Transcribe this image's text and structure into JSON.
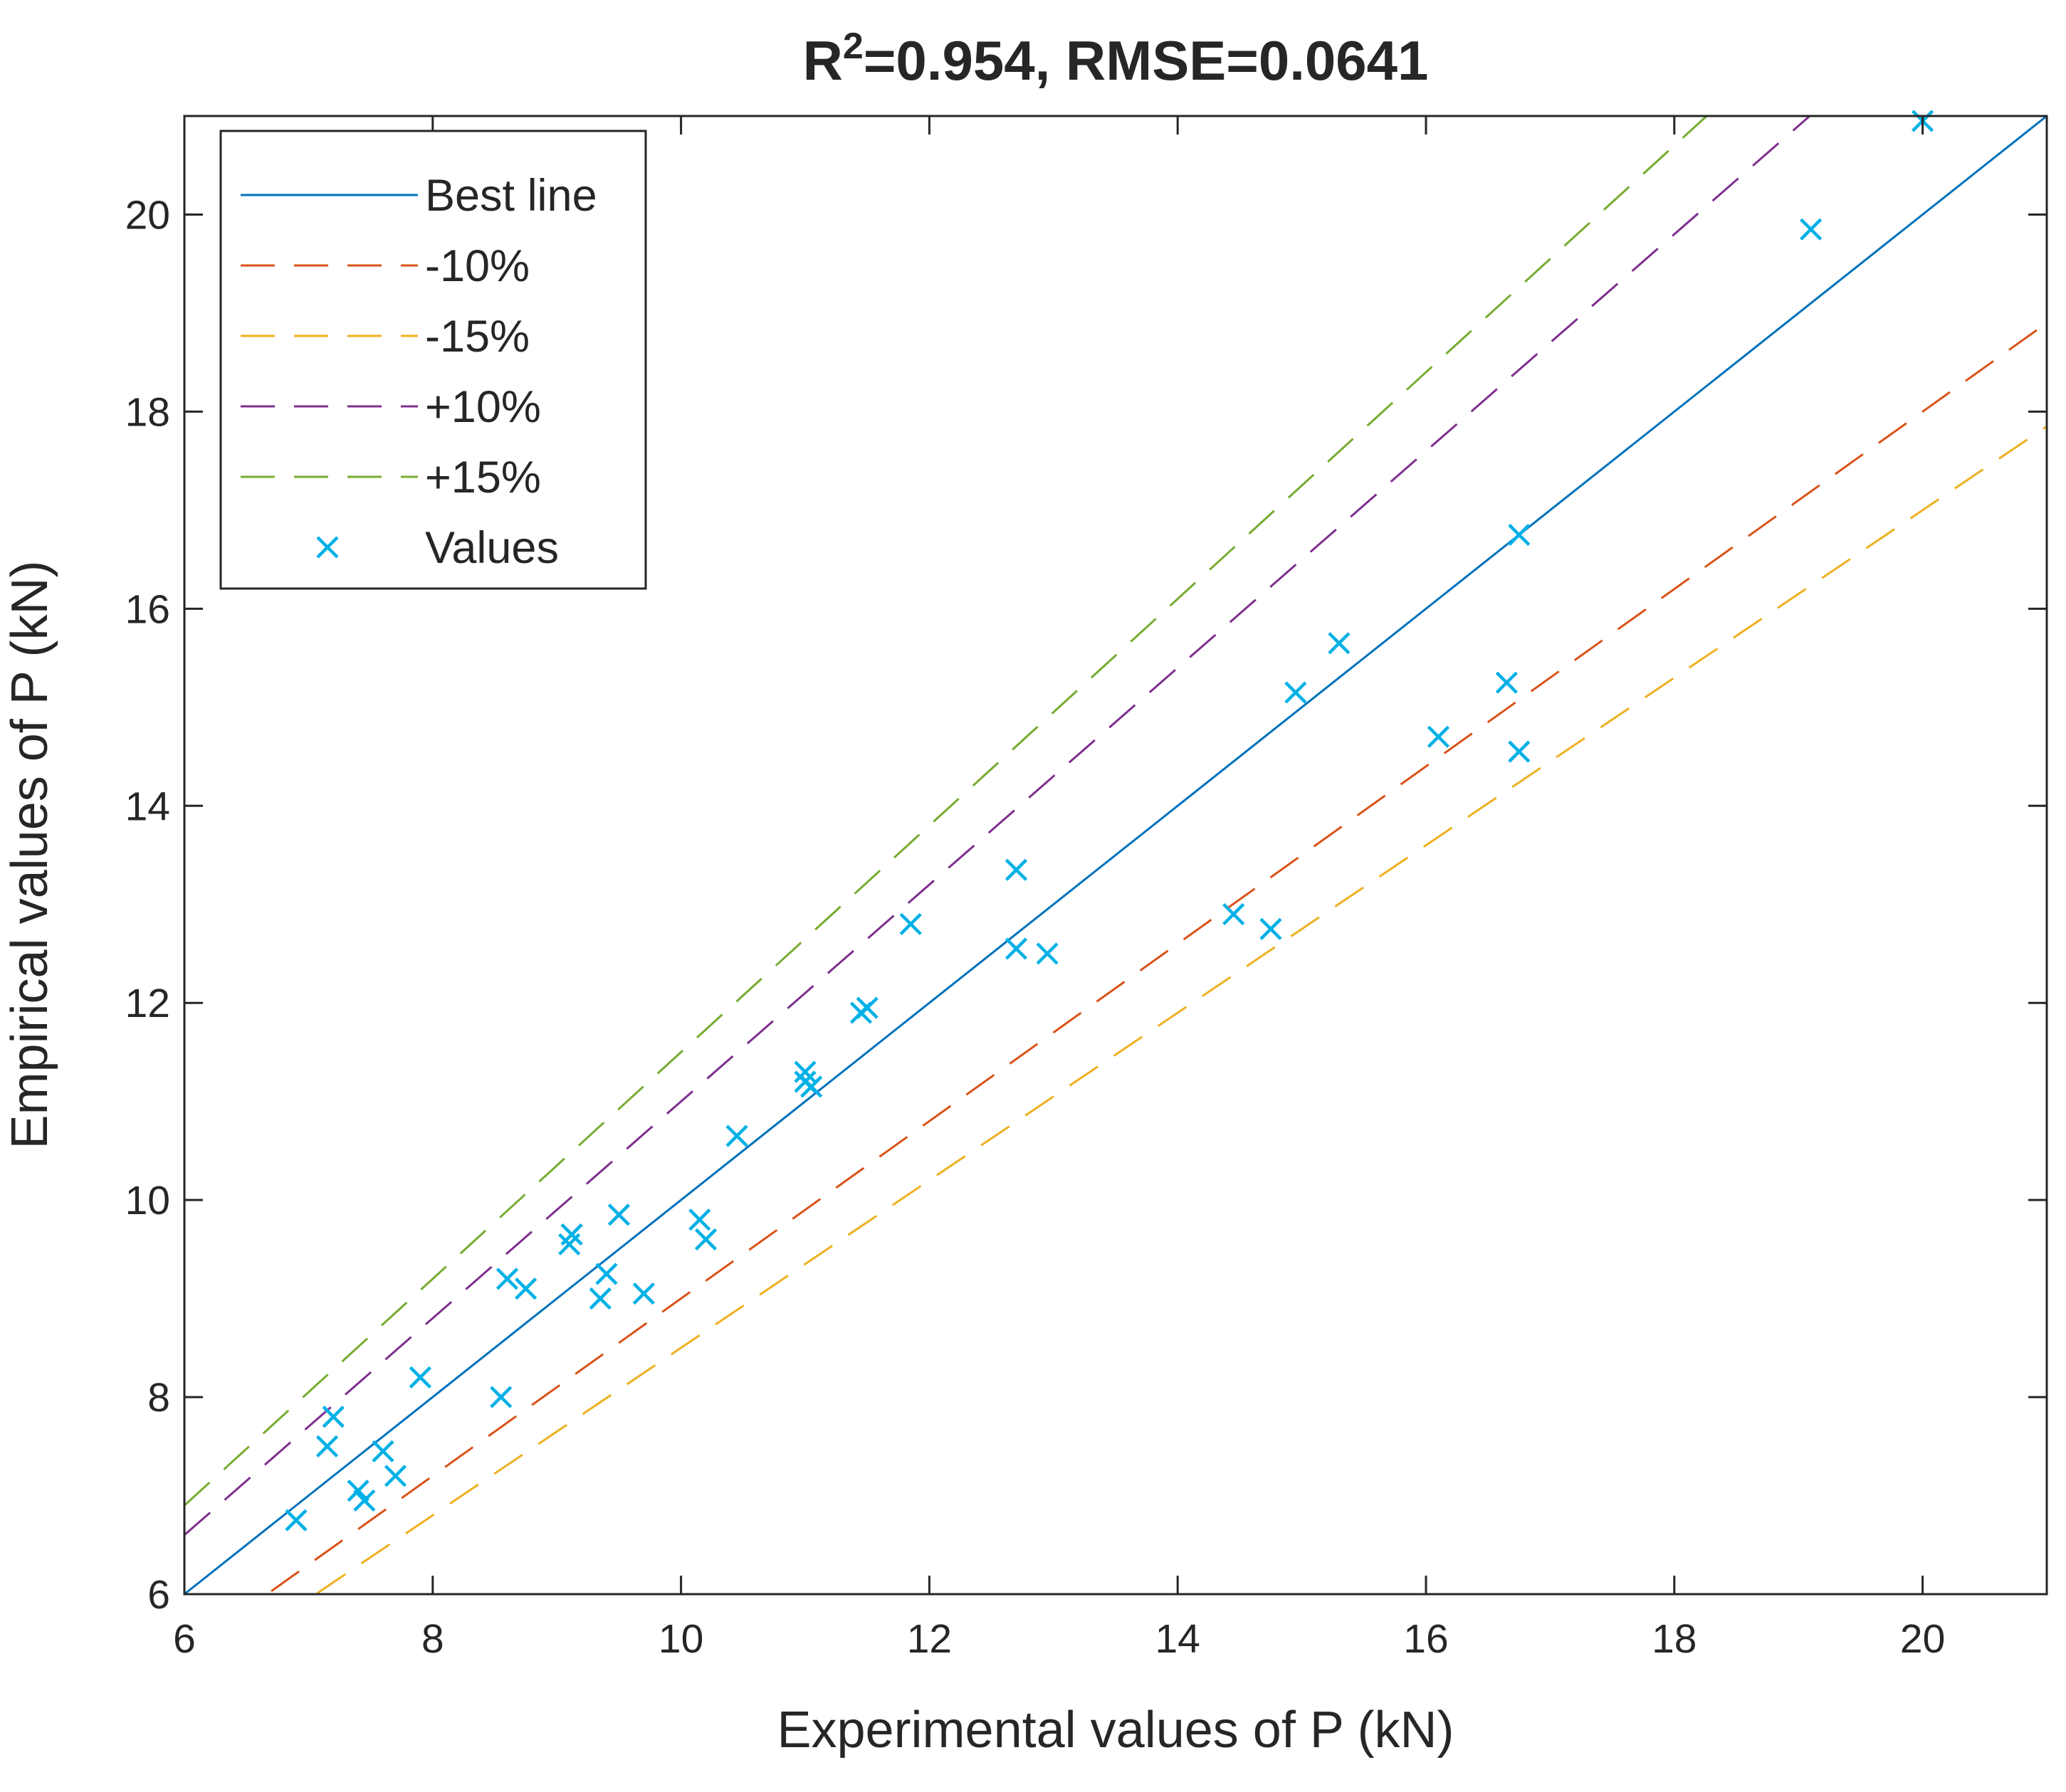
{
  "chart_data": {
    "type": "scatter",
    "title": {
      "main": "R",
      "sup": "2",
      "rest": "=0.954, RMSE=0.0641"
    },
    "xlabel": "Experimental values of P (kN)",
    "ylabel": "Empirical values of P (kN)",
    "xlim": [
      6,
      21
    ],
    "ylim": [
      6,
      21
    ],
    "xticks": [
      6,
      8,
      10,
      12,
      14,
      16,
      18,
      20
    ],
    "yticks": [
      6,
      8,
      10,
      12,
      14,
      16,
      18,
      20
    ],
    "grid": false,
    "legend_position": "top-left",
    "lines": [
      {
        "name": "Best line",
        "factor": 1.0,
        "color": "#0072BD",
        "dashed": false
      },
      {
        "name": "-10%",
        "factor": 0.9,
        "color": "#D95319",
        "dashed": true
      },
      {
        "name": "-15%",
        "factor": 0.85,
        "color": "#EDB120",
        "dashed": true
      },
      {
        "name": "+10%",
        "factor": 1.1,
        "color": "#7E2F8E",
        "dashed": true
      },
      {
        "name": "+15%",
        "factor": 1.15,
        "color": "#77AC30",
        "dashed": true
      }
    ],
    "points_series": {
      "name": "Values",
      "color": "#00B0E6",
      "marker": "x",
      "points": [
        [
          6.9,
          6.75
        ],
        [
          7.15,
          7.5
        ],
        [
          7.2,
          7.8
        ],
        [
          7.4,
          7.05
        ],
        [
          7.45,
          6.95
        ],
        [
          7.6,
          7.45
        ],
        [
          7.7,
          7.2
        ],
        [
          7.9,
          8.2
        ],
        [
          8.55,
          8.0
        ],
        [
          8.6,
          9.2
        ],
        [
          8.75,
          9.1
        ],
        [
          9.1,
          9.55
        ],
        [
          9.12,
          9.65
        ],
        [
          9.35,
          9.0
        ],
        [
          9.4,
          9.25
        ],
        [
          9.5,
          9.85
        ],
        [
          9.7,
          9.05
        ],
        [
          10.15,
          9.8
        ],
        [
          10.2,
          9.6
        ],
        [
          10.45,
          10.65
        ],
        [
          11.0,
          11.3
        ],
        [
          11.0,
          11.2
        ],
        [
          11.05,
          11.15
        ],
        [
          11.45,
          11.9
        ],
        [
          11.5,
          11.95
        ],
        [
          11.85,
          12.8
        ],
        [
          12.7,
          13.35
        ],
        [
          12.7,
          12.55
        ],
        [
          12.95,
          12.5
        ],
        [
          14.45,
          12.9
        ],
        [
          14.75,
          12.75
        ],
        [
          14.95,
          15.15
        ],
        [
          15.3,
          15.65
        ],
        [
          16.1,
          14.7
        ],
        [
          16.65,
          15.25
        ],
        [
          16.75,
          16.75
        ],
        [
          16.75,
          14.55
        ],
        [
          19.1,
          19.85
        ],
        [
          20.0,
          20.95
        ]
      ]
    }
  }
}
